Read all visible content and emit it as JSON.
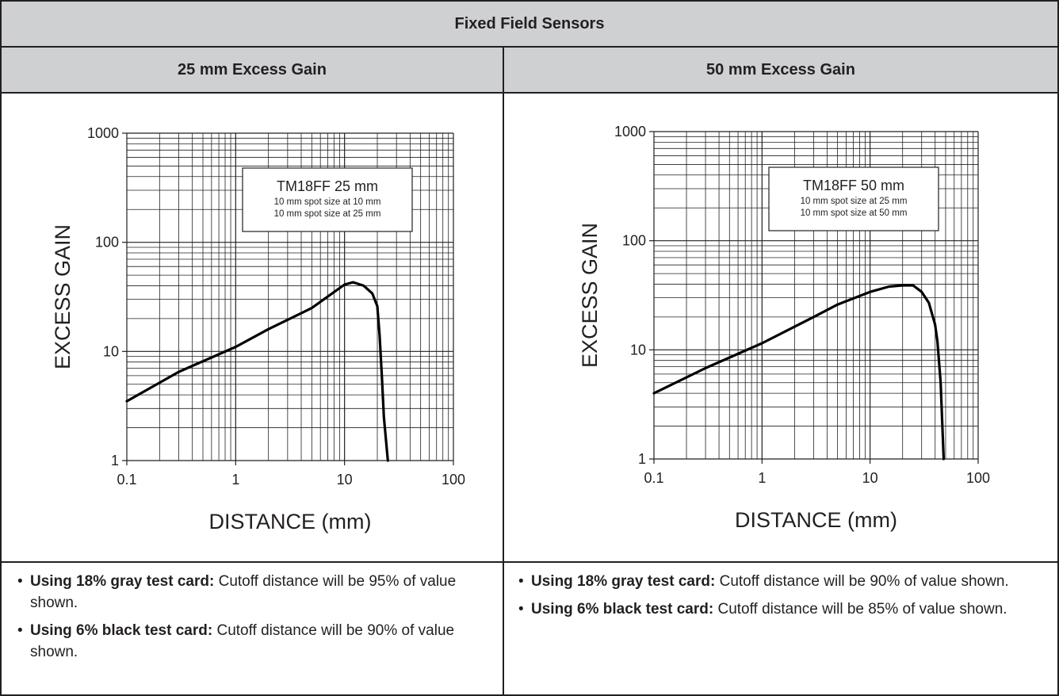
{
  "table_title": "Fixed Field Sensors",
  "chart_data": [
    {
      "type": "line",
      "column_title": "25 mm Excess Gain",
      "xlabel": "DISTANCE (mm)",
      "ylabel": "EXCESS GAIN",
      "x_scale": "log",
      "y_scale": "log",
      "xlim": [
        0.1,
        100
      ],
      "ylim": [
        1,
        1000
      ],
      "x_ticks": [
        "0.1",
        "1",
        "10",
        "100"
      ],
      "y_ticks": [
        "1",
        "10",
        "100",
        "1000"
      ],
      "grid": true,
      "legend_title": "TM18FF 25 mm",
      "legend_lines": [
        "10 mm spot size at 10 mm",
        "10 mm spot size at 25 mm"
      ],
      "series": [
        {
          "x": [
            0.1,
            0.3,
            1,
            2,
            5,
            8,
            10,
            12,
            15,
            18,
            20,
            21,
            22,
            23,
            25
          ],
          "y": [
            3.5,
            6.5,
            11,
            16,
            25,
            35,
            41,
            43,
            40,
            34,
            26,
            14,
            6,
            2.5,
            1
          ]
        }
      ]
    },
    {
      "type": "line",
      "column_title": "50 mm Excess Gain",
      "xlabel": "DISTANCE (mm)",
      "ylabel": "EXCESS GAIN",
      "x_scale": "log",
      "y_scale": "log",
      "xlim": [
        0.1,
        100
      ],
      "ylim": [
        1,
        1000
      ],
      "x_ticks": [
        "0.1",
        "1",
        "10",
        "100"
      ],
      "y_ticks": [
        "1",
        "10",
        "100",
        "1000"
      ],
      "grid": true,
      "legend_title": "TM18FF 50 mm",
      "legend_lines": [
        "10 mm spot size at 25 mm",
        "10 mm spot size at 50 mm"
      ],
      "series": [
        {
          "x": [
            0.1,
            0.3,
            1,
            3,
            5,
            10,
            15,
            20,
            25,
            30,
            35,
            40,
            42,
            45,
            48
          ],
          "y": [
            4,
            6.8,
            11.5,
            20,
            26,
            34,
            38,
            39,
            39,
            34,
            27,
            17,
            12,
            5,
            1
          ]
        }
      ]
    }
  ],
  "notes": [
    [
      {
        "bold": "Using 18% gray test card:",
        "text": " Cutoff distance will be 95% of value shown."
      },
      {
        "bold": "Using 6% black test card:",
        "text": " Cutoff distance will be 90% of value shown."
      }
    ],
    [
      {
        "bold": "Using 18% gray test card:",
        "text": " Cutoff distance will be 90% of value shown."
      },
      {
        "bold": "Using 6% black test card:",
        "text": " Cutoff distance will be 85% of value shown."
      }
    ]
  ]
}
